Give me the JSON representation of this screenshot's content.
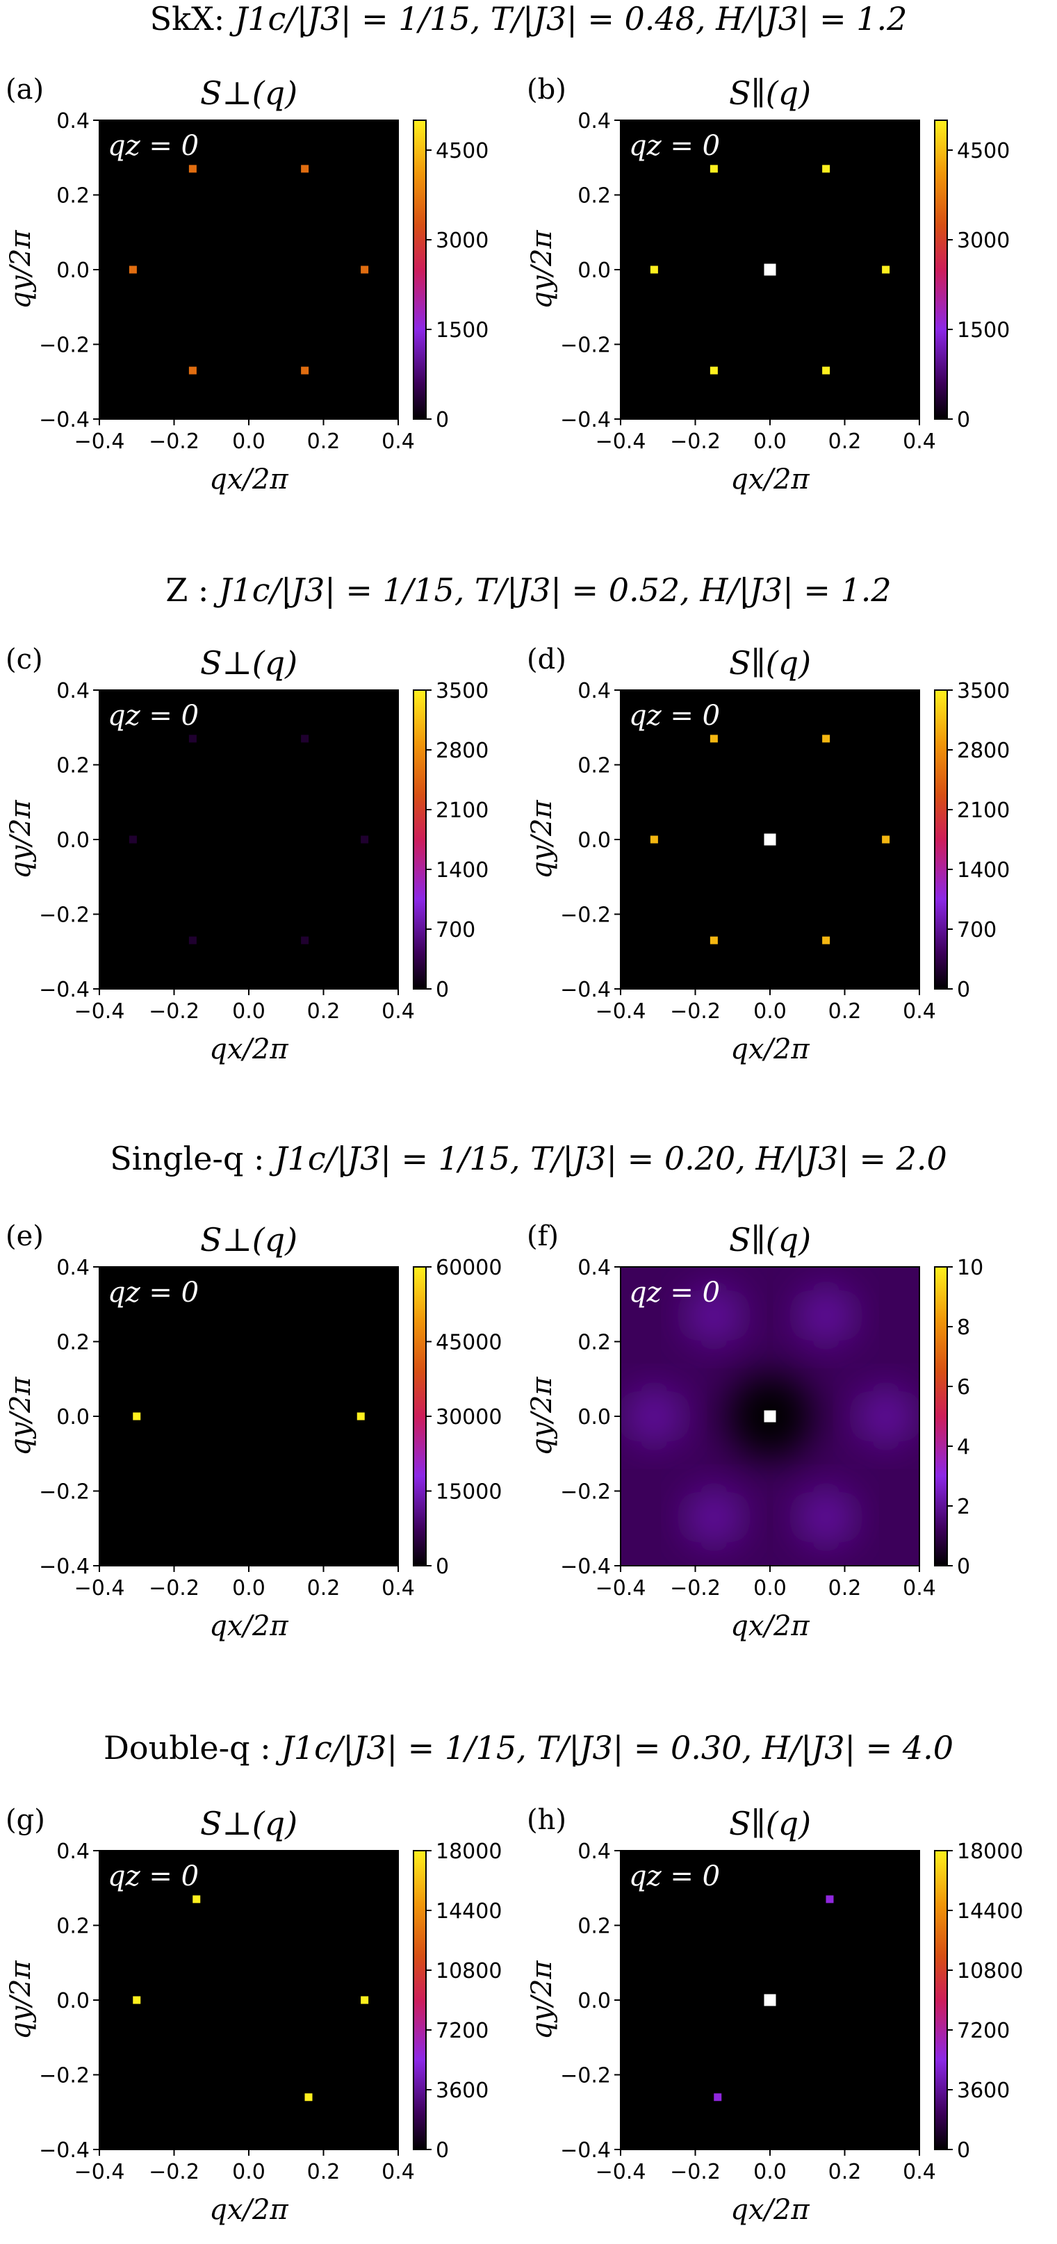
{
  "row_titles": [
    {
      "prefix": "SkX:",
      "params": "J1c/|J3| = 1/15,  T/|J3| = 0.48,  H/|J3| = 1.2"
    },
    {
      "prefix": "Z :",
      "params": "J1c/|J3| = 1/15,  T/|J3| = 0.52,  H/|J3| = 1.2"
    },
    {
      "prefix": "Single-q :",
      "params": "J1c/|J3| = 1/15,  T/|J3| = 0.20,  H/|J3| = 2.0"
    },
    {
      "prefix": "Double-q :",
      "params": "J1c/|J3| = 1/15,  T/|J3| = 0.30,  H/|J3| = 4.0"
    }
  ],
  "axis_text": {
    "xlabel": "qx/2π",
    "ylabel": "qy/2π",
    "inset": "qz = 0",
    "ticks": [
      "−0.4",
      "−0.2",
      "0.0",
      "0.2",
      "0.4"
    ]
  },
  "colors": {
    "background": "#000000",
    "central_peak": "#ffffff"
  },
  "chart_data": [
    {
      "type": "heatmap",
      "label": "(a)",
      "title": "S⊥(q)",
      "inset": "qz = 0",
      "xlabel": "qx/2π",
      "ylabel": "qy/2π",
      "xlim": [
        -0.4,
        0.4
      ],
      "ylim": [
        -0.4,
        0.4
      ],
      "colorbar": {
        "min": 0,
        "max": 5000,
        "ticks": [
          0,
          1500,
          3000,
          4500
        ]
      },
      "peaks": [
        {
          "x": -0.15,
          "y": 0.27,
          "value": 3600
        },
        {
          "x": 0.15,
          "y": 0.27,
          "value": 3600
        },
        {
          "x": -0.31,
          "y": 0.0,
          "value": 3600
        },
        {
          "x": 0.31,
          "y": 0.0,
          "value": 3600
        },
        {
          "x": -0.15,
          "y": -0.27,
          "value": 3600
        },
        {
          "x": 0.15,
          "y": -0.27,
          "value": 3600
        }
      ]
    },
    {
      "type": "heatmap",
      "label": "(b)",
      "title": "S∥(q)",
      "inset": "qz = 0",
      "xlabel": "qx/2π",
      "ylabel": "qy/2π",
      "xlim": [
        -0.4,
        0.4
      ],
      "ylim": [
        -0.4,
        0.4
      ],
      "colorbar": {
        "min": 0,
        "max": 5000,
        "ticks": [
          0,
          1500,
          3000,
          4500
        ]
      },
      "peaks": [
        {
          "x": -0.15,
          "y": 0.27,
          "value": 5000
        },
        {
          "x": 0.15,
          "y": 0.27,
          "value": 5000
        },
        {
          "x": -0.31,
          "y": 0.0,
          "value": 5000
        },
        {
          "x": 0.31,
          "y": 0.0,
          "value": 5000
        },
        {
          "x": -0.15,
          "y": -0.27,
          "value": 5000
        },
        {
          "x": 0.15,
          "y": -0.27,
          "value": 5000
        },
        {
          "x": 0.0,
          "y": 0.0,
          "value": 1000000
        }
      ]
    },
    {
      "type": "heatmap",
      "label": "(c)",
      "title": "S⊥(q)",
      "inset": "qz = 0",
      "xlabel": "qx/2π",
      "ylabel": "qy/2π",
      "xlim": [
        -0.4,
        0.4
      ],
      "ylim": [
        -0.4,
        0.4
      ],
      "colorbar": {
        "min": 0,
        "max": 3500,
        "ticks": [
          0,
          700,
          1400,
          2100,
          2800,
          3500
        ]
      },
      "peaks": [
        {
          "x": -0.15,
          "y": 0.27,
          "value": 220
        },
        {
          "x": 0.15,
          "y": 0.27,
          "value": 220
        },
        {
          "x": -0.31,
          "y": 0.0,
          "value": 220
        },
        {
          "x": 0.31,
          "y": 0.0,
          "value": 220
        },
        {
          "x": -0.15,
          "y": -0.27,
          "value": 220
        },
        {
          "x": 0.15,
          "y": -0.27,
          "value": 220
        }
      ]
    },
    {
      "type": "heatmap",
      "label": "(d)",
      "title": "S∥(q)",
      "inset": "qz = 0",
      "xlabel": "qx/2π",
      "ylabel": "qy/2π",
      "xlim": [
        -0.4,
        0.4
      ],
      "ylim": [
        -0.4,
        0.4
      ],
      "colorbar": {
        "min": 0,
        "max": 3500,
        "ticks": [
          0,
          700,
          1400,
          2100,
          2800,
          3500
        ]
      },
      "peaks": [
        {
          "x": -0.15,
          "y": 0.27,
          "value": 3100
        },
        {
          "x": 0.15,
          "y": 0.27,
          "value": 3100
        },
        {
          "x": -0.31,
          "y": 0.0,
          "value": 3100
        },
        {
          "x": 0.31,
          "y": 0.0,
          "value": 3100
        },
        {
          "x": -0.15,
          "y": -0.27,
          "value": 3100
        },
        {
          "x": 0.15,
          "y": -0.27,
          "value": 3100
        },
        {
          "x": 0.0,
          "y": 0.0,
          "value": 1000000
        }
      ]
    },
    {
      "type": "heatmap",
      "label": "(e)",
      "title": "S⊥(q)",
      "inset": "qz = 0",
      "xlabel": "qx/2π",
      "ylabel": "qy/2π",
      "xlim": [
        -0.4,
        0.4
      ],
      "ylim": [
        -0.4,
        0.4
      ],
      "colorbar": {
        "min": 0,
        "max": 60000,
        "ticks": [
          0,
          15000,
          30000,
          45000,
          60000
        ]
      },
      "peaks": [
        {
          "x": -0.3,
          "y": 0.0,
          "value": 60000
        },
        {
          "x": 0.3,
          "y": 0.0,
          "value": 60000
        }
      ]
    },
    {
      "type": "heatmap",
      "label": "(f)",
      "title": "S∥(q)",
      "inset": "qz = 0",
      "xlabel": "qx/2π",
      "ylabel": "qy/2π",
      "xlim": [
        -0.4,
        0.4
      ],
      "ylim": [
        -0.4,
        0.4
      ],
      "colorbar": {
        "min": 0,
        "max": 10,
        "ticks": [
          0,
          2,
          4,
          6,
          8,
          10
        ]
      },
      "diffuse": {
        "value": 1.2,
        "halo_value": 2.2,
        "halos": [
          {
            "x": -0.15,
            "y": 0.27
          },
          {
            "x": 0.15,
            "y": 0.27
          },
          {
            "x": -0.31,
            "y": 0.0
          },
          {
            "x": 0.31,
            "y": 0.0
          },
          {
            "x": -0.15,
            "y": -0.27
          },
          {
            "x": 0.15,
            "y": -0.27
          }
        ]
      },
      "peaks": [
        {
          "x": 0.0,
          "y": 0.0,
          "value": 1000000
        }
      ]
    },
    {
      "type": "heatmap",
      "label": "(g)",
      "title": "S⊥(q)",
      "inset": "qz = 0",
      "xlabel": "qx/2π",
      "ylabel": "qy/2π",
      "xlim": [
        -0.4,
        0.4
      ],
      "ylim": [
        -0.4,
        0.4
      ],
      "colorbar": {
        "min": 0,
        "max": 18000,
        "ticks": [
          0,
          3600,
          7200,
          10800,
          14400,
          18000
        ]
      },
      "peaks": [
        {
          "x": -0.14,
          "y": 0.27,
          "value": 18000
        },
        {
          "x": -0.3,
          "y": 0.0,
          "value": 18000
        },
        {
          "x": 0.31,
          "y": 0.0,
          "value": 18000
        },
        {
          "x": 0.16,
          "y": -0.26,
          "value": 18000
        }
      ]
    },
    {
      "type": "heatmap",
      "label": "(h)",
      "title": "S∥(q)",
      "inset": "qz = 0",
      "xlabel": "qx/2π",
      "ylabel": "qy/2π",
      "xlim": [
        -0.4,
        0.4
      ],
      "ylim": [
        -0.4,
        0.4
      ],
      "colorbar": {
        "min": 0,
        "max": 18000,
        "ticks": [
          0,
          3600,
          7200,
          10800,
          14400,
          18000
        ]
      },
      "peaks": [
        {
          "x": 0.16,
          "y": 0.27,
          "value": 5600
        },
        {
          "x": -0.14,
          "y": -0.26,
          "value": 5600
        },
        {
          "x": 0.0,
          "y": 0.0,
          "value": 1000000
        }
      ]
    }
  ]
}
